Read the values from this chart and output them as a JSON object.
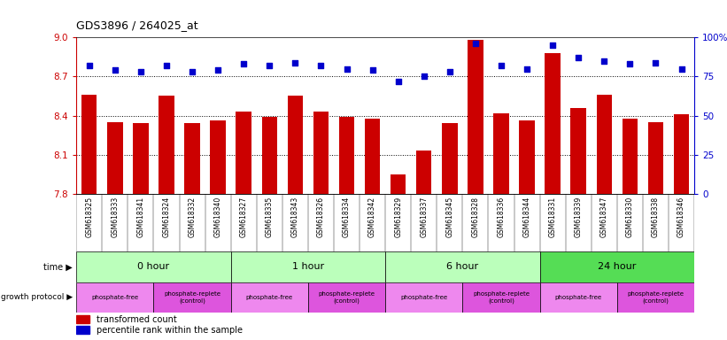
{
  "title": "GDS3896 / 264025_at",
  "samples": [
    "GSM618325",
    "GSM618333",
    "GSM618341",
    "GSM618324",
    "GSM618332",
    "GSM618340",
    "GSM618327",
    "GSM618335",
    "GSM618343",
    "GSM618326",
    "GSM618334",
    "GSM618342",
    "GSM618329",
    "GSM618337",
    "GSM618345",
    "GSM618328",
    "GSM618336",
    "GSM618344",
    "GSM618331",
    "GSM618339",
    "GSM618347",
    "GSM618330",
    "GSM618338",
    "GSM618346"
  ],
  "red_values": [
    8.56,
    8.35,
    8.34,
    8.55,
    8.34,
    8.36,
    8.43,
    8.39,
    8.55,
    8.43,
    8.39,
    8.38,
    7.95,
    8.13,
    8.34,
    8.98,
    8.42,
    8.36,
    8.88,
    8.46,
    8.56,
    8.38,
    8.35,
    8.41
  ],
  "blue_values": [
    82,
    79,
    78,
    82,
    78,
    79,
    83,
    82,
    84,
    82,
    80,
    79,
    72,
    75,
    78,
    96,
    82,
    80,
    95,
    87,
    85,
    83,
    84,
    80
  ],
  "ylim_left": [
    7.8,
    9.0
  ],
  "ylim_right": [
    0,
    100
  ],
  "yticks_left": [
    7.8,
    8.1,
    8.4,
    8.7,
    9.0
  ],
  "yticks_right": [
    0,
    25,
    50,
    75,
    100
  ],
  "grid_lines": [
    8.1,
    8.4,
    8.7
  ],
  "bar_color": "#cc0000",
  "dot_color": "#0000cc",
  "bar_bottom": 7.8,
  "time_labels": [
    "0 hour",
    "1 hour",
    "6 hour",
    "24 hour"
  ],
  "time_starts": [
    0,
    6,
    12,
    18
  ],
  "time_ends": [
    6,
    12,
    18,
    24
  ],
  "time_colors": [
    "#bbffbb",
    "#bbffbb",
    "#bbffbb",
    "#55dd55"
  ],
  "prot_labels": [
    "phosphate-free",
    "phosphate-replete\n(control)",
    "phosphate-free",
    "phosphate-replete\n(control)",
    "phosphate-free",
    "phosphate-replete\n(control)",
    "phosphate-free",
    "phosphate-replete\n(control)"
  ],
  "prot_starts": [
    0,
    3,
    6,
    9,
    12,
    15,
    18,
    21
  ],
  "prot_ends": [
    3,
    6,
    9,
    12,
    15,
    18,
    21,
    24
  ],
  "prot_colors": [
    "#ee88ee",
    "#dd55dd",
    "#ee88ee",
    "#dd55dd",
    "#ee88ee",
    "#dd55dd",
    "#ee88ee",
    "#dd55dd"
  ],
  "axis_color_left": "#cc0000",
  "axis_color_right": "#0000cc",
  "n_samples": 24,
  "bg_color": "#e8e8e8"
}
